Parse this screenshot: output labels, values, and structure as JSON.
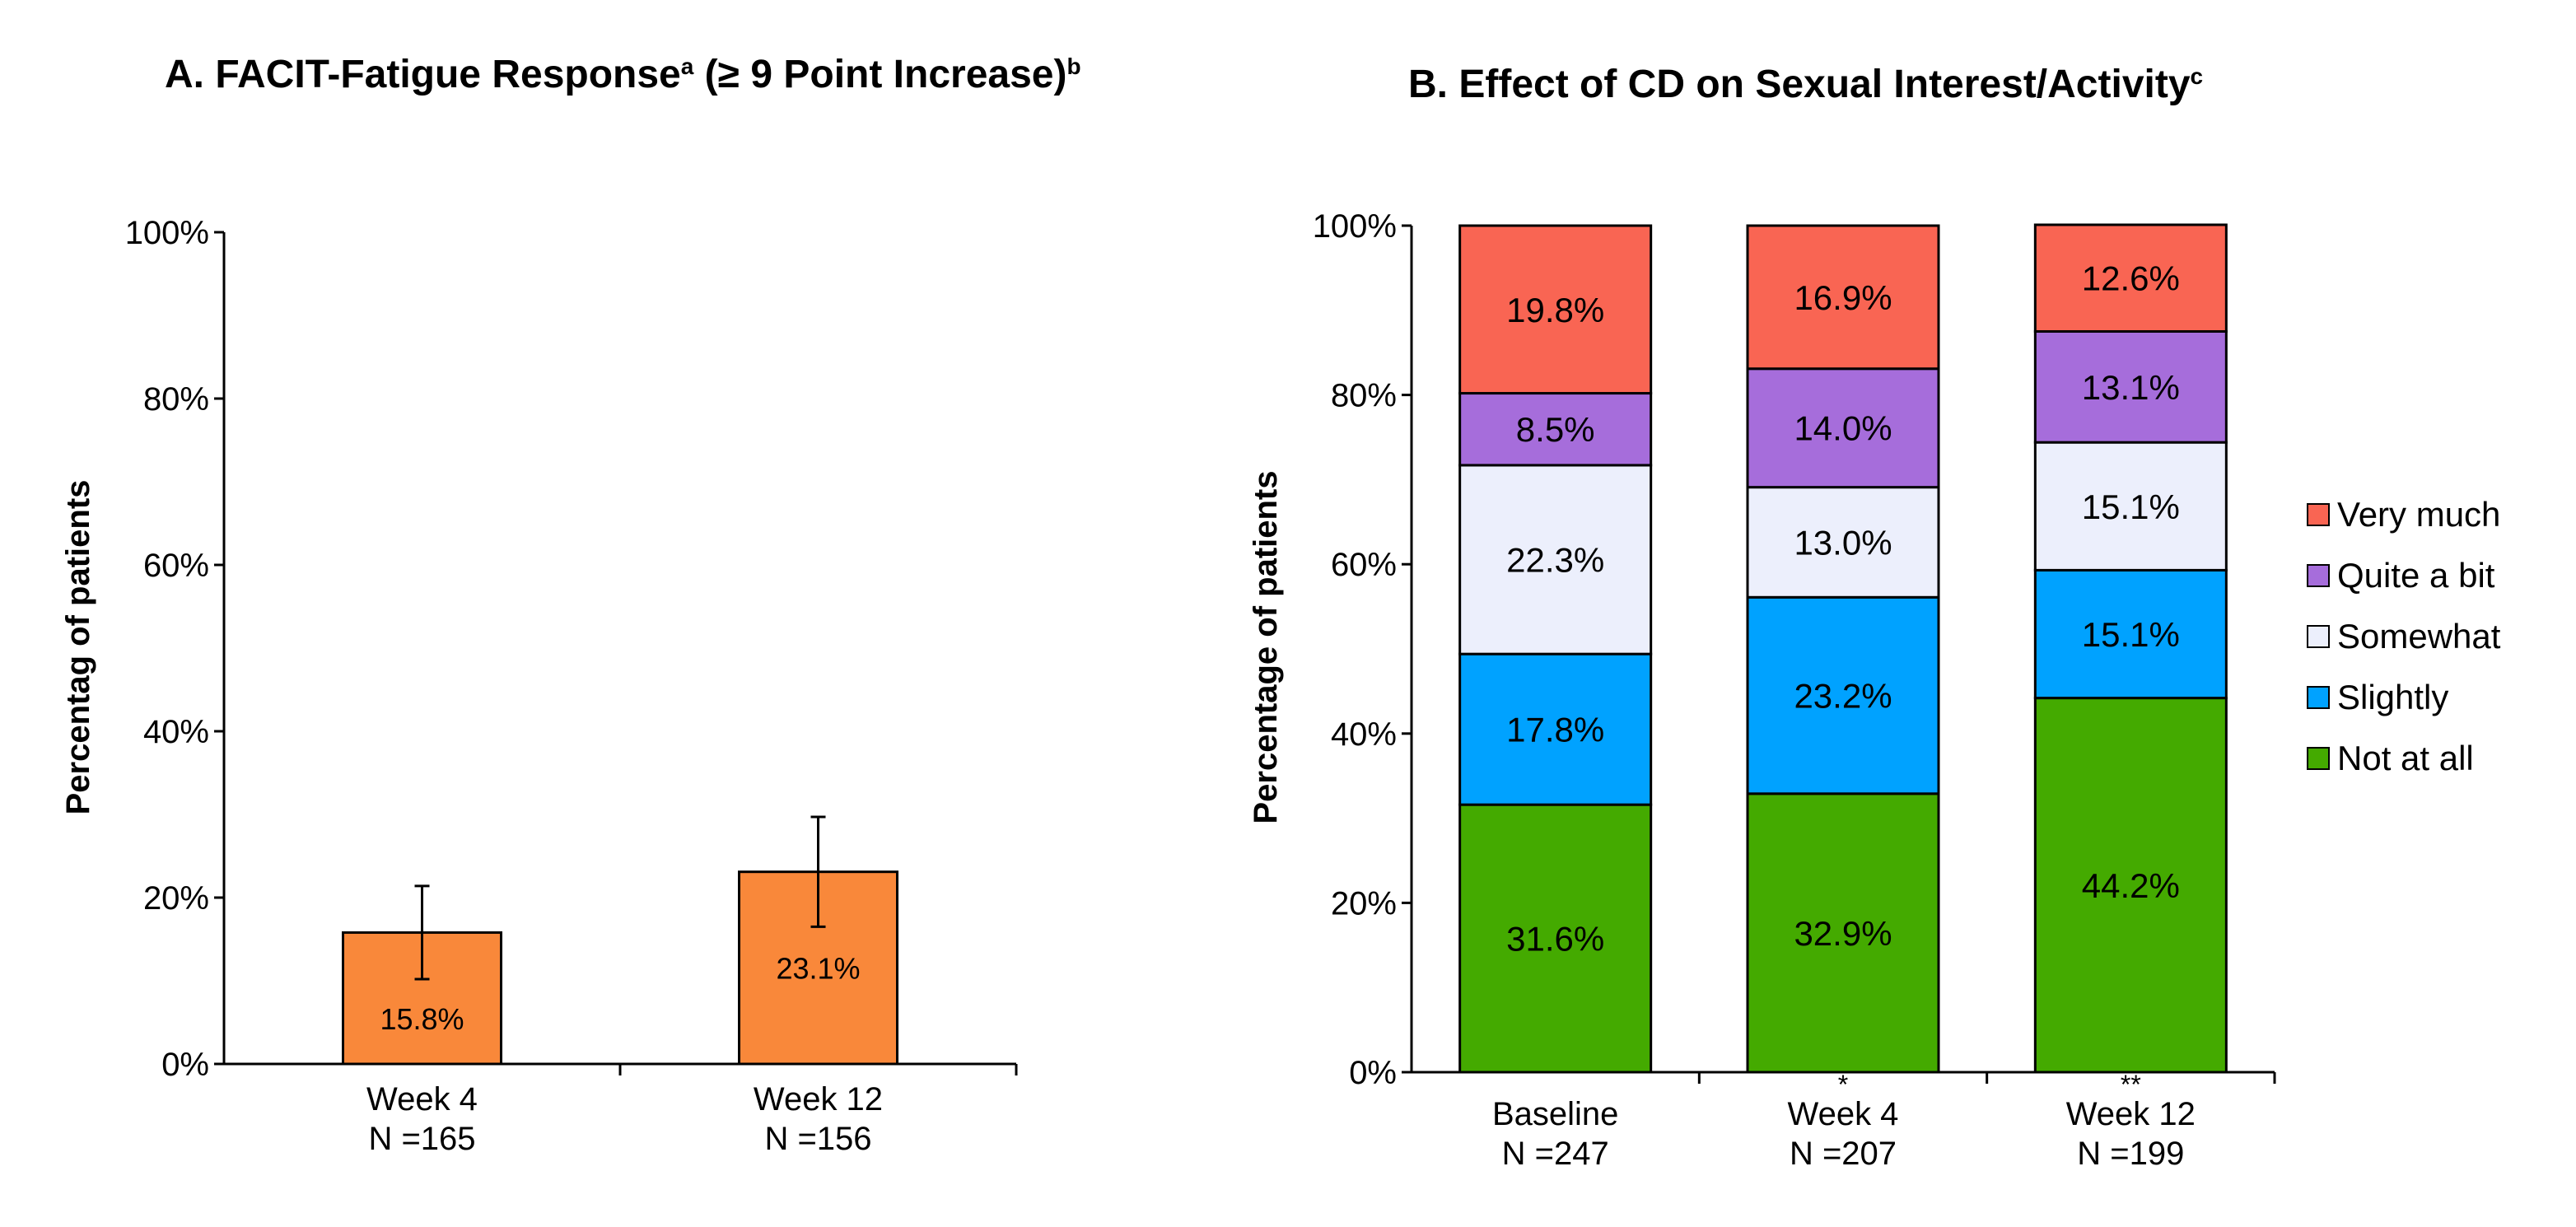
{
  "chart_data": [
    {
      "type": "bar",
      "title": "A. FACIT-Fatigue Response",
      "title_sup_1": "a",
      "title_mid": " (≥ 9 Point Increase)",
      "title_sup_2": "b",
      "ylabel": "Percentag of patients",
      "ylim": [
        0,
        100
      ],
      "yticks": [
        "0%",
        "20%",
        "40%",
        "60%",
        "80%",
        "100%"
      ],
      "categories": [
        "Week 4",
        "Week 12"
      ],
      "category_n": [
        "N =165",
        "N =156"
      ],
      "values": [
        15.8,
        23.1
      ],
      "value_labels": [
        "15.8%",
        "23.1%"
      ],
      "error_low": [
        10.2,
        16.5
      ],
      "error_high": [
        21.4,
        29.7
      ],
      "bar_color": "#F9883A"
    },
    {
      "type": "bar",
      "stacked": true,
      "title": "B. Effect of CD on Sexual Interest/Activity",
      "title_sup": "c",
      "ylabel": "Percentage of patients",
      "ylim": [
        0,
        100
      ],
      "yticks": [
        "0%",
        "20%",
        "40%",
        "60%",
        "80%",
        "100%"
      ],
      "categories": [
        "Baseline",
        "Week 4",
        "Week 12"
      ],
      "category_n": [
        "N =247",
        "N =207",
        "N =199"
      ],
      "significance": [
        "",
        "*",
        "**"
      ],
      "legend_position": "right",
      "series": [
        {
          "name": "Not at all",
          "color": "#44AA00",
          "values": [
            31.6,
            32.9,
            44.2
          ],
          "labels": [
            "31.6%",
            "32.9%",
            "44.2%"
          ]
        },
        {
          "name": "Slightly",
          "color": "#00A2FF",
          "values": [
            17.8,
            23.2,
            15.1
          ],
          "labels": [
            "17.8%",
            "23.2%",
            "15.1%"
          ]
        },
        {
          "name": "Somewhat",
          "color": "#ECEFFC",
          "values": [
            22.3,
            13.0,
            15.1
          ],
          "labels": [
            "22.3%",
            "13.0%",
            "15.1%"
          ]
        },
        {
          "name": "Quite a bit",
          "color": "#A66DDB",
          "values": [
            8.5,
            14.0,
            13.1
          ],
          "labels": [
            "8.5%",
            "14.0%",
            "13.1%"
          ]
        },
        {
          "name": "Very much",
          "color": "#F96553",
          "values": [
            19.8,
            16.9,
            12.6
          ],
          "labels": [
            "19.8%",
            "16.9%",
            "12.6%"
          ]
        }
      ],
      "legend_order": [
        "Very much",
        "Quite a bit",
        "Somewhat",
        "Slightly",
        "Not at all"
      ]
    }
  ]
}
